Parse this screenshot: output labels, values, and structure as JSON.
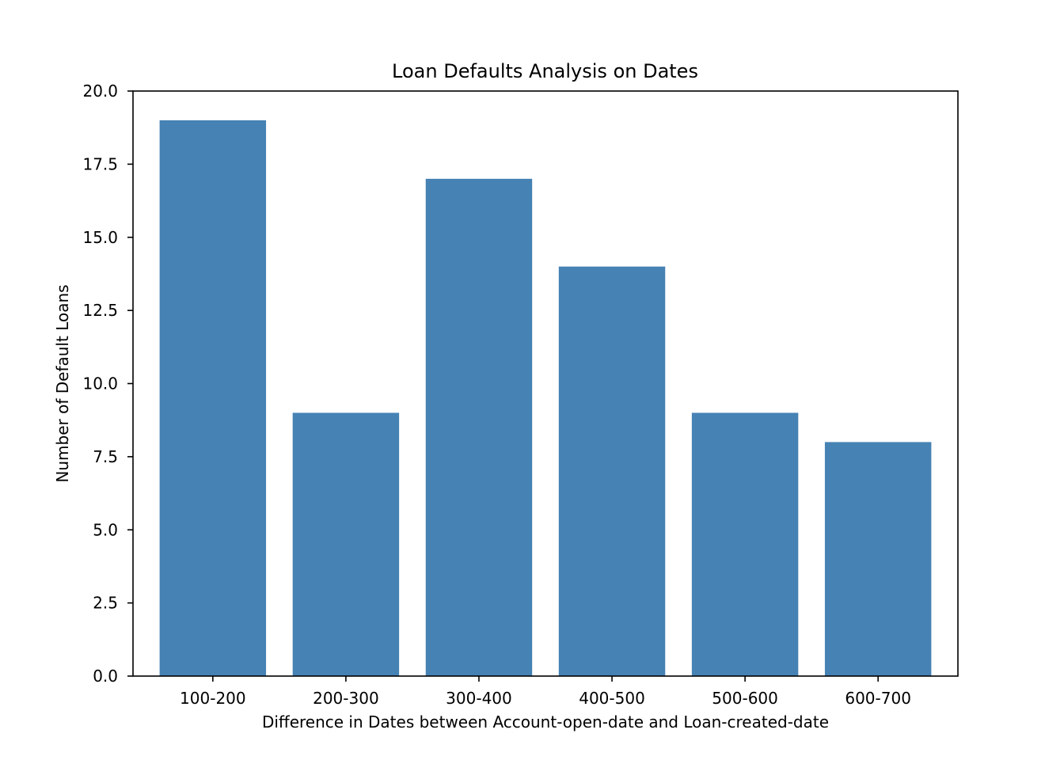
{
  "chart_data": {
    "type": "bar",
    "title": "Loan Defaults Analysis on Dates",
    "xlabel": "Difference in Dates between Account-open-date and Loan-created-date",
    "ylabel": "Number of Default Loans",
    "categories": [
      "100-200",
      "200-300",
      "300-400",
      "400-500",
      "500-600",
      "600-700"
    ],
    "values": [
      19,
      9,
      17,
      14,
      9,
      8
    ],
    "ylim": [
      0,
      20
    ],
    "yticks": [
      "0.0",
      "2.5",
      "5.0",
      "7.5",
      "10.0",
      "12.5",
      "15.0",
      "17.5",
      "20.0"
    ],
    "bar_color": "#4682b4",
    "grid": false,
    "legend": "none"
  }
}
